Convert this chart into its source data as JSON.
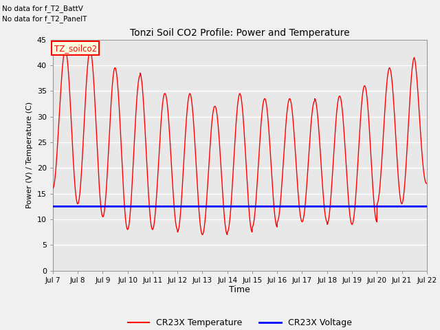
{
  "title": "Tonzi Soil CO2 Profile: Power and Temperature",
  "ylabel": "Power (V) / Temperature (C)",
  "xlabel": "Time",
  "ylim": [
    0,
    45
  ],
  "yticks": [
    0,
    5,
    10,
    15,
    20,
    25,
    30,
    35,
    40,
    45
  ],
  "xtick_labels": [
    "Jul 7",
    "Jul 8",
    "Jul 9",
    "Jul 10",
    "Jul 11",
    "Jul 12",
    "Jul 13",
    "Jul 14",
    "Jul 15",
    "Jul 16",
    "Jul 17",
    "Jul 18",
    "Jul 19",
    "Jul 20",
    "Jul 21",
    "Jul 22"
  ],
  "annotations_top_left": [
    "No data for f_T2_BattV",
    "No data for f_T2_PanelT"
  ],
  "cursor_label": "TZ_soilco2",
  "temp_color": "#ff0000",
  "volt_color": "#0000ff",
  "plot_bg_color": "#e8e8e8",
  "grid_color": "#ffffff",
  "fig_bg_color": "#f0f0f0",
  "legend_labels": [
    "CR23X Temperature",
    "CR23X Voltage"
  ],
  "voltage_value": 12.5
}
